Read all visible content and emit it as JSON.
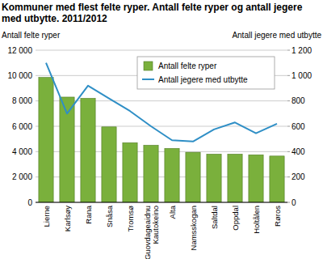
{
  "chart_data": {
    "type": "bar",
    "title": "Kommuner med flest felte ryper. Antall felte ryper og antall jegere med utbytte. 2011/2012",
    "y_label": "Antall felte ryper",
    "y2_label": "Antall jegere med utbytte",
    "categories": [
      "Lierne",
      "Karlsøy",
      "Rana",
      "Snåsa",
      "Tromsø",
      "Guovdageaidnu Kautokeino",
      "Alta",
      "Namsskogan",
      "Saltdal",
      "Oppdal",
      "Holtålen",
      "Røros"
    ],
    "series": [
      {
        "name": "Antall felte ryper",
        "type": "bar",
        "color": "#7ab03c",
        "values": [
          9850,
          8300,
          8200,
          5950,
          4700,
          4500,
          4250,
          3950,
          3800,
          3800,
          3750,
          3650
        ]
      },
      {
        "name": "Antall jegere med utbytte",
        "type": "line",
        "axis": "y2",
        "color": "#2f8fc6",
        "values": [
          1100,
          700,
          920,
          820,
          720,
          600,
          490,
          480,
          575,
          630,
          545,
          620
        ]
      }
    ],
    "ylim": [
      0,
      12000
    ],
    "yticks": [
      0,
      {
        "value": 2000,
        "label": "2 000"
      },
      {
        "value": 4000,
        "label": "4 000"
      },
      {
        "value": 6000,
        "label": "6 000"
      },
      {
        "value": 8000,
        "label": "8 000"
      },
      {
        "value": 10000,
        "label": "10 000"
      },
      {
        "value": 12000,
        "label": "12 000"
      }
    ],
    "y2lim": [
      0,
      1200
    ],
    "y2ticks": [
      0,
      200,
      400,
      600,
      800,
      {
        "value": 1000,
        "label": "1 000"
      },
      {
        "value": 1200,
        "label": "1 200"
      }
    ],
    "grid": true,
    "legend": "upper right"
  }
}
